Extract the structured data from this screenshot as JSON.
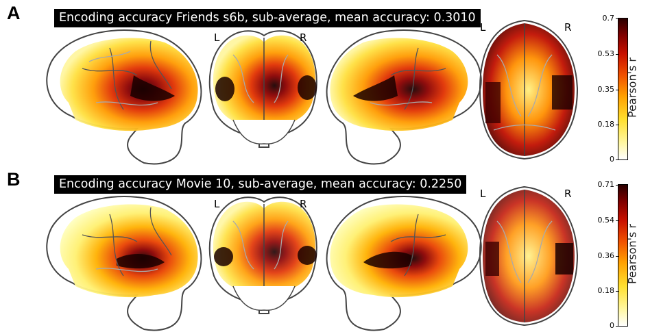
{
  "panels": [
    {
      "letter": "A",
      "title": "Encoding accuracy Friends s6b, sub-average, mean accuracy: 0.3010",
      "hemi_labels": {
        "left": "L",
        "right": "R",
        "axial_left": "L",
        "axial_right": "R"
      },
      "colorbar": {
        "label": "Pearson's r",
        "ticks": [
          "0.7",
          "0.53",
          "0.35",
          "0.18",
          "0"
        ]
      }
    },
    {
      "letter": "B",
      "title": "Encoding accuracy Movie 10, sub-average, mean accuracy: 0.2250",
      "hemi_labels": {
        "left": "L",
        "right": "R",
        "axial_left": "L",
        "axial_right": "R"
      },
      "colorbar": {
        "label": "Pearson's r",
        "ticks": [
          "0.71",
          "0.54",
          "0.36",
          "0.18",
          "0"
        ]
      }
    }
  ],
  "colors": {
    "low": "#ffff99",
    "mid": "#ff9000",
    "high": "#c81000",
    "max": "#200000",
    "outline": "#444444",
    "sulci": "#a0a0a0"
  },
  "icons": [
    "brain-glass-lateral-left",
    "brain-glass-coronal",
    "brain-glass-lateral-right",
    "brain-glass-axial"
  ]
}
